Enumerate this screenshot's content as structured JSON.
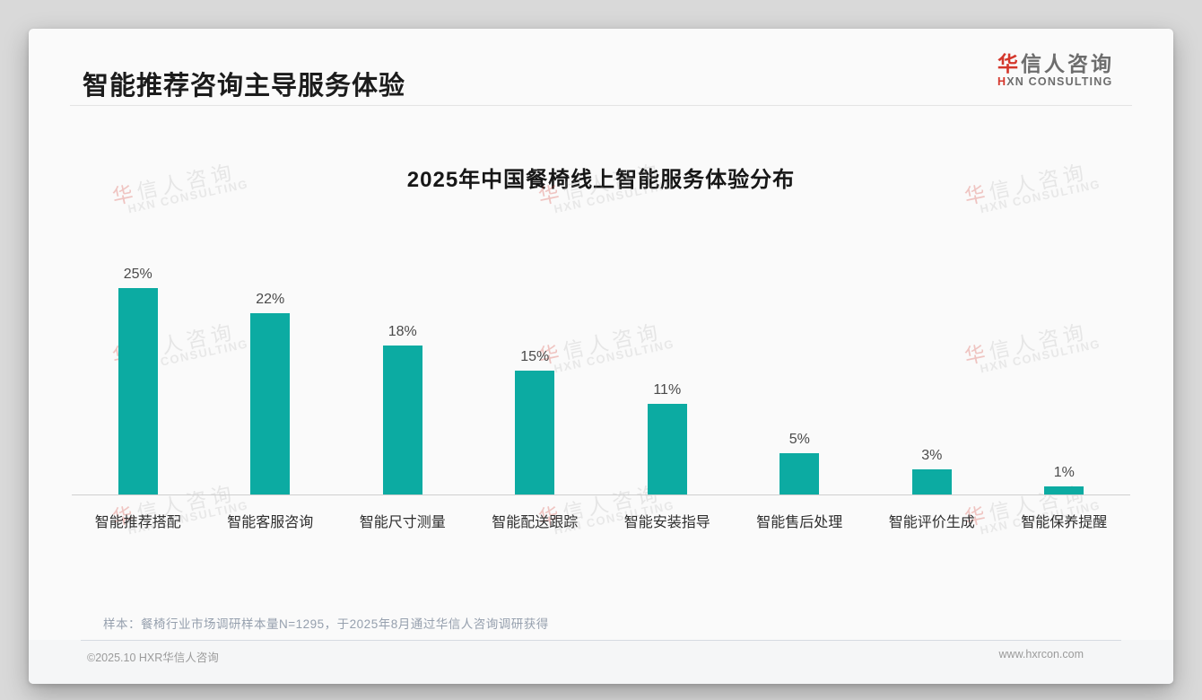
{
  "page": {
    "title": "智能推荐咨询主导服务体验",
    "logo": {
      "cn_accent": "华",
      "cn_rest": "信人咨询",
      "en_accent": "H",
      "en_rest": "XN CONSULTING"
    },
    "watermark": {
      "cn_accent": "华",
      "cn_rest": "信人咨询",
      "en": "HXN CONSULTING"
    },
    "note": "样本：餐椅行业市场调研样本量N=1295，于2025年8月通过华信人咨询调研获得",
    "footer": {
      "copyright": "©2025.10 HXR华信人咨询",
      "website": "www.hxrcon.com"
    }
  },
  "chart_data": {
    "type": "bar",
    "title": "2025年中国餐椅线上智能服务体验分布",
    "categories": [
      "智能推荐搭配",
      "智能客服咨询",
      "智能尺寸测量",
      "智能配送跟踪",
      "智能安装指导",
      "智能售后处理",
      "智能评价生成",
      "智能保养提醒"
    ],
    "values": [
      25,
      22,
      18,
      15,
      11,
      5,
      3,
      1
    ],
    "value_labels": [
      "25%",
      "22%",
      "18%",
      "15%",
      "11%",
      "5%",
      "3%",
      "1%"
    ],
    "unit": "%",
    "xlabel": "",
    "ylabel": "",
    "ylim": [
      0,
      27
    ],
    "grid": false,
    "legend": "none",
    "bar_color": "#0caba2",
    "value_label_color": "#4a4a4a"
  }
}
